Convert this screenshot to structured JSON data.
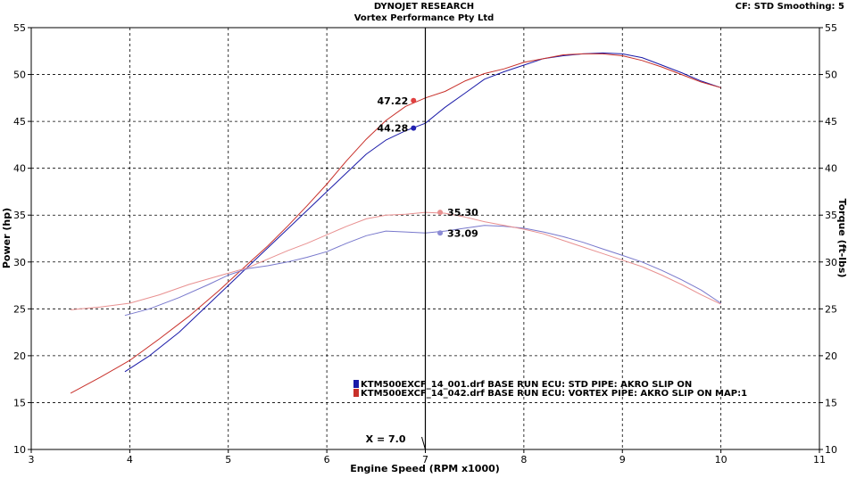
{
  "header": {
    "line1": "DYNOJET RESEARCH",
    "line2": "Vortex Performance Pty Ltd",
    "right": "CF: STD  Smoothing: 5"
  },
  "chart_data": {
    "type": "line",
    "xlabel": "Engine Speed (RPM x1000)",
    "ylabel_left": "Power (hp)",
    "ylabel_right": "Torque (ft-lbs)",
    "xlim": [
      3,
      11
    ],
    "ylim_left": [
      10,
      55
    ],
    "ylim_right": [
      10,
      55
    ],
    "x_ticks": [
      "3",
      "4",
      "5",
      "6",
      "7",
      "8",
      "9",
      "10",
      "11"
    ],
    "y_ticks_left": [
      "10",
      "15",
      "20",
      "25",
      "30",
      "35",
      "40",
      "45",
      "50",
      "55"
    ],
    "y_ticks_right": [
      "10",
      "15",
      "20",
      "25",
      "30",
      "35",
      "40",
      "45",
      "50",
      "55"
    ],
    "grid": true,
    "cursor": {
      "x": 7.0,
      "label": "X = 7.0"
    },
    "legend": {
      "placement": "bottom-center",
      "entries": [
        {
          "text": "KTM500EXCF_14_001.drf BASE RUN ECU: STD PIPE: AKRO SLIP ON",
          "color": "#1a1aa8"
        },
        {
          "text": "KTM500EXCF_14_042.drf BASE RUN ECU: VORTEX  PIPE: AKRO SLIP ON MAP:1",
          "color": "#c8302a"
        }
      ]
    },
    "series": [
      {
        "kind": "power",
        "run": 1,
        "color": "#1a1aa8",
        "x": [
          3.95,
          4.2,
          4.5,
          4.8,
          5.0,
          5.2,
          5.4,
          5.6,
          5.8,
          6.0,
          6.2,
          6.4,
          6.6,
          6.8,
          7.0,
          7.2,
          7.4,
          7.6,
          7.8,
          8.0,
          8.2,
          8.4,
          8.6,
          8.8,
          9.0,
          9.2,
          9.4,
          9.6,
          9.8,
          10.0
        ],
        "y": [
          18.3,
          20.0,
          22.5,
          25.5,
          27.5,
          29.5,
          31.5,
          33.5,
          35.5,
          37.5,
          39.5,
          41.5,
          43.0,
          44.0,
          44.8,
          46.5,
          48.0,
          49.5,
          50.3,
          51.0,
          51.7,
          52.0,
          52.2,
          52.3,
          52.2,
          51.8,
          51.0,
          50.2,
          49.3,
          48.6
        ]
      },
      {
        "kind": "power",
        "run": 2,
        "color": "#c8302a",
        "x": [
          3.4,
          3.7,
          4.0,
          4.3,
          4.6,
          4.9,
          5.2,
          5.4,
          5.6,
          5.8,
          6.0,
          6.2,
          6.4,
          6.6,
          6.8,
          7.0,
          7.2,
          7.4,
          7.6,
          7.8,
          8.0,
          8.2,
          8.4,
          8.6,
          8.8,
          9.0,
          9.2,
          9.4,
          9.6,
          9.8,
          10.0
        ],
        "y": [
          16.0,
          17.7,
          19.5,
          21.8,
          24.2,
          26.9,
          29.8,
          31.7,
          33.8,
          36.0,
          38.3,
          40.8,
          43.1,
          45.1,
          46.6,
          47.5,
          48.2,
          49.3,
          50.1,
          50.6,
          51.3,
          51.7,
          52.1,
          52.2,
          52.2,
          52.0,
          51.5,
          50.8,
          50.0,
          49.2,
          48.6
        ]
      },
      {
        "kind": "torque",
        "run": 1,
        "color": "#7878cc",
        "x": [
          3.95,
          4.2,
          4.5,
          4.8,
          5.0,
          5.2,
          5.4,
          5.6,
          5.8,
          6.0,
          6.2,
          6.4,
          6.6,
          6.8,
          7.0,
          7.2,
          7.4,
          7.6,
          7.8,
          8.0,
          8.2,
          8.4,
          8.6,
          8.8,
          9.0,
          9.2,
          9.4,
          9.6,
          9.8,
          10.0
        ],
        "y": [
          24.3,
          25.0,
          26.2,
          27.6,
          28.6,
          29.3,
          29.6,
          30.0,
          30.5,
          31.1,
          32.0,
          32.8,
          33.3,
          33.2,
          33.1,
          33.3,
          33.6,
          33.9,
          33.8,
          33.6,
          33.2,
          32.7,
          32.1,
          31.4,
          30.7,
          30.0,
          29.1,
          28.1,
          27.0,
          25.6
        ]
      },
      {
        "kind": "torque",
        "run": 2,
        "color": "#e89090",
        "x": [
          3.4,
          3.7,
          4.0,
          4.3,
          4.6,
          4.9,
          5.2,
          5.4,
          5.6,
          5.8,
          6.0,
          6.2,
          6.4,
          6.6,
          6.8,
          7.0,
          7.2,
          7.4,
          7.6,
          7.8,
          8.0,
          8.2,
          8.4,
          8.6,
          8.8,
          9.0,
          9.2,
          9.4,
          9.6,
          9.8,
          10.0
        ],
        "y": [
          24.9,
          25.2,
          25.6,
          26.5,
          27.6,
          28.5,
          29.4,
          30.3,
          31.2,
          32.0,
          32.9,
          33.8,
          34.6,
          35.0,
          35.1,
          35.3,
          35.2,
          34.8,
          34.3,
          33.9,
          33.5,
          33.0,
          32.3,
          31.6,
          30.9,
          30.2,
          29.5,
          28.6,
          27.6,
          26.5,
          25.5
        ]
      }
    ],
    "cursor_values": [
      {
        "series": 1,
        "x": 6.88,
        "y": 47.22,
        "label": "47.22",
        "color": "#e04040",
        "side": "left"
      },
      {
        "series": 0,
        "x": 6.88,
        "y": 44.28,
        "label": "44.28",
        "color": "#2020b0",
        "side": "left"
      },
      {
        "series": 3,
        "x": 7.15,
        "y": 35.3,
        "label": "35.30",
        "color": "#e89090",
        "side": "right"
      },
      {
        "series": 2,
        "x": 7.15,
        "y": 33.09,
        "label": "33.09",
        "color": "#8a8ad4",
        "side": "right"
      }
    ]
  }
}
